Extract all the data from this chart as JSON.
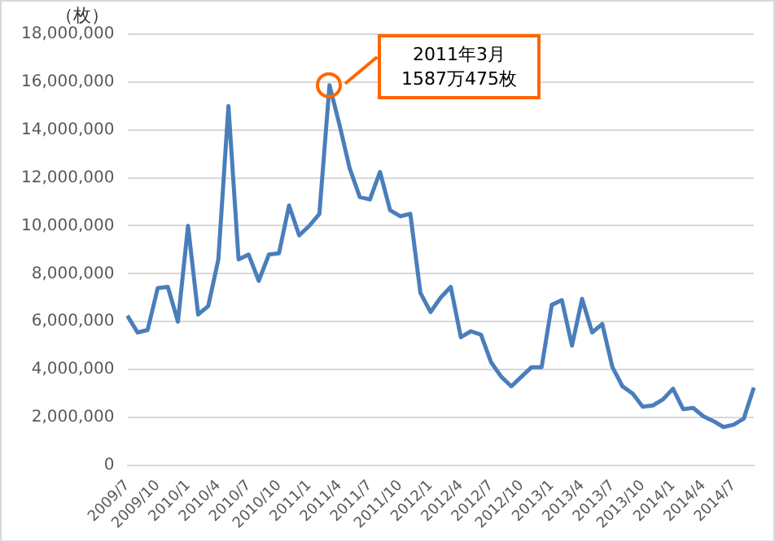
{
  "chart_data": {
    "type": "line",
    "ylabel": "（枚）",
    "categories": [
      "2009/7",
      null,
      null,
      "2009/10",
      null,
      null,
      "2010/1",
      null,
      null,
      "2010/4",
      null,
      null,
      "2010/7",
      null,
      null,
      "2010/10",
      null,
      null,
      "2011/1",
      null,
      null,
      "2011/4",
      null,
      null,
      "2011/7",
      null,
      null,
      "2011/10",
      null,
      null,
      "2012/1",
      null,
      null,
      "2012/4",
      null,
      null,
      "2012/7",
      null,
      null,
      "2012/10",
      null,
      null,
      "2013/1",
      null,
      null,
      "2013/4",
      null,
      null,
      "2013/7",
      null,
      null,
      "2013/10",
      null,
      null,
      "2014/1",
      null,
      null,
      "2014/4",
      null,
      null,
      "2014/7",
      null,
      null
    ],
    "series": [
      {
        "color": "#4a7ebb",
        "values": [
          6250000,
          5550000,
          5650000,
          7400000,
          7450000,
          6000000,
          10000000,
          6300000,
          6650000,
          8600000,
          15000000,
          8600000,
          8800000,
          7700000,
          8800000,
          8850000,
          10850000,
          9600000,
          10000000,
          10500000,
          15870475,
          14200000,
          12400000,
          11200000,
          11100000,
          12250000,
          10650000,
          10400000,
          10500000,
          7200000,
          6400000,
          7000000,
          7450000,
          5350000,
          5600000,
          5450000,
          4300000,
          3700000,
          3300000,
          3700000,
          4100000,
          4100000,
          6700000,
          6900000,
          5000000,
          6950000,
          5550000,
          5900000,
          4100000,
          3300000,
          3000000,
          2450000,
          2500000,
          2750000,
          3200000,
          2350000,
          2400000,
          2050000,
          1850000,
          1600000,
          1700000,
          1950000,
          3250000
        ]
      }
    ],
    "ylim": [
      0,
      18000000
    ],
    "yticks": [
      {
        "value": 0,
        "label": "0"
      },
      {
        "value": 2000000,
        "label": "2,000,000"
      },
      {
        "value": 4000000,
        "label": "4,000,000"
      },
      {
        "value": 6000000,
        "label": "6,000,000"
      },
      {
        "value": 8000000,
        "label": "8,000,000"
      },
      {
        "value": 10000000,
        "label": "10,000,000"
      },
      {
        "value": 12000000,
        "label": "12,000,000"
      },
      {
        "value": 14000000,
        "label": "14,000,000"
      },
      {
        "value": 16000000,
        "label": "16,000,000"
      },
      {
        "value": 18000000,
        "label": "18,000,000"
      }
    ],
    "grid": "y",
    "legend": false,
    "marker": "none",
    "annotations": [
      "2011年3月\n1587万475枚"
    ]
  }
}
